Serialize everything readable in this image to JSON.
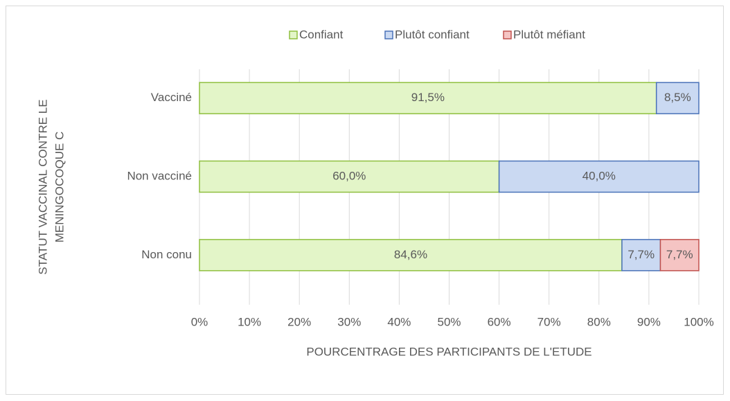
{
  "chart_data": {
    "type": "stacked-barh",
    "categories": [
      "Vacciné",
      "Non vacciné",
      "Non conu"
    ],
    "series": [
      {
        "name": "Confiant",
        "color": "#e3f5c8",
        "stroke": "#8fbf3f",
        "values": [
          91.5,
          60.0,
          84.6
        ],
        "value_labels": [
          "91,5%",
          "60,0%",
          "84,6%"
        ]
      },
      {
        "name": "Plutôt confiant",
        "color": "#cad9f2",
        "stroke": "#4a72b8",
        "values": [
          8.5,
          40.0,
          7.7
        ],
        "value_labels": [
          "8,5%",
          "40,0%",
          "7,7%"
        ]
      },
      {
        "name": "Plutôt méfiant",
        "color": "#f5c4c3",
        "stroke": "#c0504d",
        "values": [
          null,
          null,
          7.7
        ],
        "value_labels": [
          null,
          null,
          "7,7%"
        ]
      }
    ],
    "xlim": [
      0,
      100
    ],
    "xticks": [
      {
        "value": 0,
        "label": "0%"
      },
      {
        "value": 10,
        "label": "10%"
      },
      {
        "value": 20,
        "label": "20%"
      },
      {
        "value": 30,
        "label": "30%"
      },
      {
        "value": 40,
        "label": "40%"
      },
      {
        "value": 50,
        "label": "50%"
      },
      {
        "value": 60,
        "label": "60%"
      },
      {
        "value": 70,
        "label": "70%"
      },
      {
        "value": 80,
        "label": "80%"
      },
      {
        "value": 90,
        "label": "90%"
      },
      {
        "value": 100,
        "label": "100%"
      }
    ],
    "xlabel": "POURCENTRAGE DES PARTICIPANTS DE L'ETUDE",
    "ylabel": [
      "STATUT VACCINAL CONTRE LE",
      "MENINGOCOQUE C"
    ],
    "grid": true,
    "legend": "top"
  }
}
